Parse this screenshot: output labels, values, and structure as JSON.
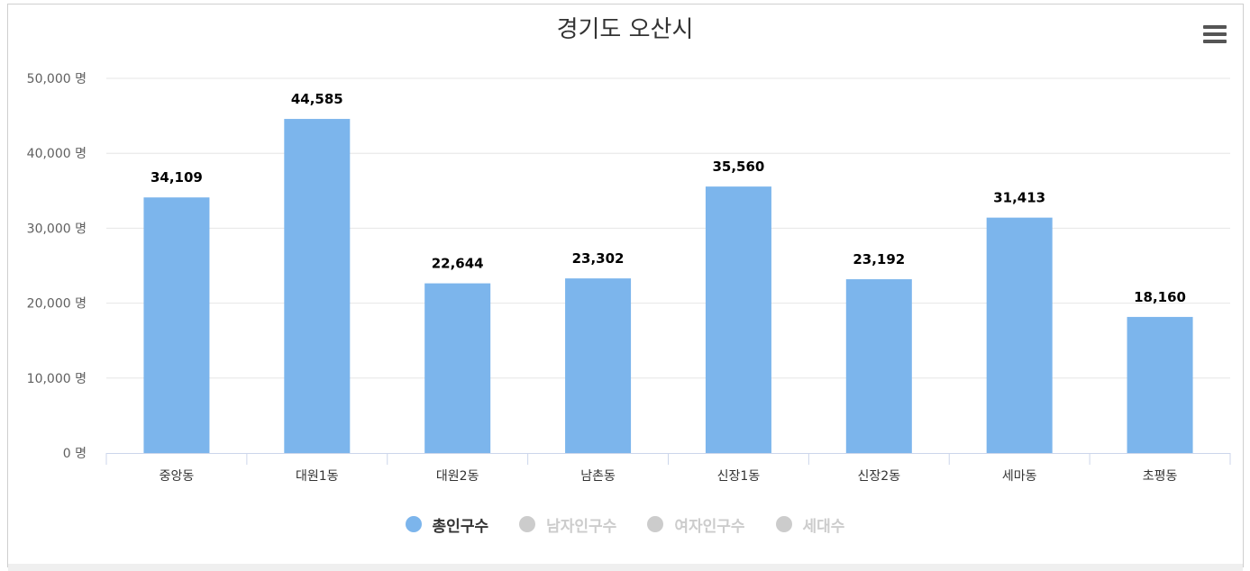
{
  "chart_data": {
    "type": "bar",
    "title": "경기도 오산시",
    "categories": [
      "중앙동",
      "대원1동",
      "대원2동",
      "남촌동",
      "신장1동",
      "신장2동",
      "세마동",
      "초평동"
    ],
    "series": [
      {
        "name": "총인구수",
        "values": [
          34109,
          44585,
          22644,
          23302,
          35560,
          23192,
          31413,
          18160
        ],
        "visible": true
      }
    ],
    "data_labels": [
      "34,109",
      "44,585",
      "22,644",
      "23,302",
      "35,560",
      "23,192",
      "31,413",
      "18,160"
    ],
    "ylim": [
      0,
      50000
    ],
    "yticks": [
      0,
      10000,
      20000,
      30000,
      40000,
      50000
    ],
    "ytick_labels": [
      "0 명",
      "10,000 명",
      "20,000 명",
      "30,000 명",
      "40,000 명",
      "50,000 명"
    ],
    "grid": true,
    "legend_position": "bottom-center"
  },
  "legend": [
    {
      "label": "총인구수",
      "active": true
    },
    {
      "label": "남자인구수",
      "active": false
    },
    {
      "label": "여자인구수",
      "active": false
    },
    {
      "label": "세대수",
      "active": false
    }
  ],
  "colors": {
    "bar": "#7cb5ec",
    "legend_inactive": "#cccccc",
    "legend_active_text": "#333333",
    "grid": "#e6e6e6",
    "axis": "#ccd6eb"
  },
  "menu": {
    "icon": "hamburger-menu-icon"
  }
}
